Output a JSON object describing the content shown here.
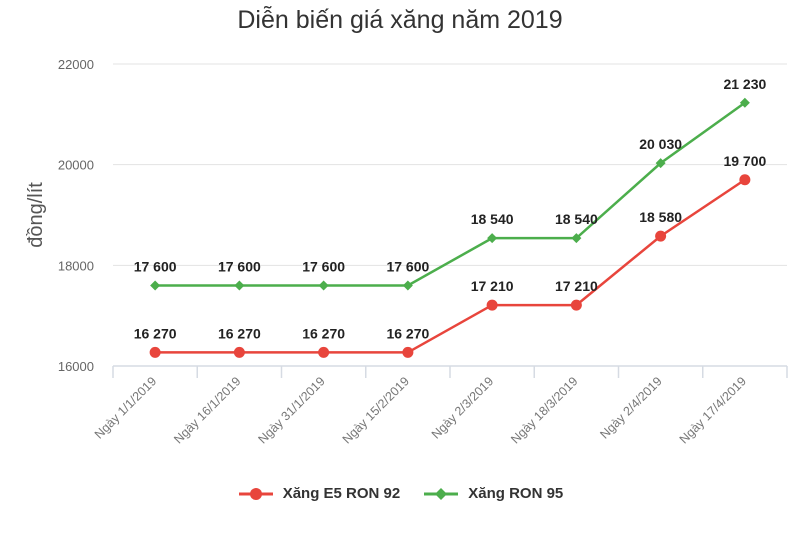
{
  "chart_data": {
    "type": "line",
    "title": "Diễn biến giá xăng năm 2019",
    "xlabel": "",
    "ylabel": "đồng/lít",
    "ylim": [
      16000,
      22000
    ],
    "yticks": [
      16000,
      18000,
      20000,
      22000
    ],
    "grid": true,
    "legend_position": "bottom",
    "categories": [
      "Ngày 1/1/2019",
      "Ngày 16/1/2019",
      "Ngày 31/1/2019",
      "Ngày 15/2/2019",
      "Ngày 2/3/2019",
      "Ngày 18/3/2019",
      "Ngày 2/4/2019",
      "Ngày 17/4/2019"
    ],
    "series": [
      {
        "name": "Xăng E5 RON 92",
        "color": "#e8453c",
        "marker": "circle",
        "values": [
          16270,
          16270,
          16270,
          16270,
          17210,
          17210,
          18580,
          19700
        ],
        "labels": [
          "16 270",
          "16 270",
          "16 270",
          "16 270",
          "17 210",
          "17 210",
          "18 580",
          "19 700"
        ]
      },
      {
        "name": "Xăng RON 95",
        "color": "#4cae4c",
        "marker": "diamond",
        "values": [
          17600,
          17600,
          17600,
          17600,
          18540,
          18540,
          20030,
          21230
        ],
        "labels": [
          "17 600",
          "17 600",
          "17 600",
          "17 600",
          "18 540",
          "18 540",
          "20 030",
          "21 230"
        ]
      }
    ]
  },
  "legend": {
    "items": [
      {
        "label": "Xăng E5 RON 92",
        "color": "#e8453c"
      },
      {
        "label": "Xăng RON 95",
        "color": "#4cae4c"
      }
    ]
  }
}
